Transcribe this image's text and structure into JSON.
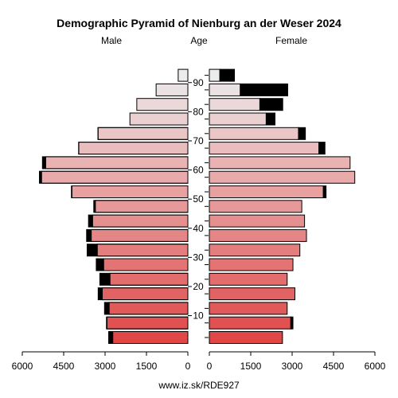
{
  "chart_data": {
    "type": "bar",
    "title": "Demographic Pyramid of Nienburg an der Weser 2024",
    "left_label": "Male",
    "center_label": "Age",
    "right_label": "Female",
    "footer": "www.iz.sk/RDE927",
    "age_ticks": [
      "10",
      "20",
      "30",
      "40",
      "50",
      "60",
      "70",
      "80",
      "90"
    ],
    "x_ticks_left": [
      "6000",
      "4500",
      "3000",
      "1500",
      "0"
    ],
    "x_ticks_right": [
      "0",
      "1500",
      "3000",
      "4500",
      "6000"
    ],
    "xlim": [
      0,
      6000
    ],
    "age_groups": [
      "0-4",
      "5-9",
      "10-14",
      "15-19",
      "20-24",
      "25-29",
      "30-34",
      "35-39",
      "40-44",
      "45-49",
      "50-54",
      "55-59",
      "60-64",
      "65-69",
      "70-74",
      "75-79",
      "80-84",
      "85-89",
      "90+"
    ],
    "series": [
      {
        "name": "Male",
        "values": [
          2720,
          2930,
          2850,
          3100,
          2820,
          3050,
          3280,
          3500,
          3450,
          3350,
          4200,
          5300,
          5150,
          3950,
          3250,
          2100,
          1850,
          1150,
          350
        ]
      },
      {
        "name": "Male excess",
        "values": [
          150,
          20,
          170,
          150,
          370,
          270,
          370,
          170,
          150,
          60,
          20,
          80,
          120,
          10,
          10,
          0,
          0,
          0,
          0
        ]
      },
      {
        "name": "Female",
        "values": [
          2650,
          2950,
          2820,
          3100,
          2820,
          3030,
          3280,
          3520,
          3450,
          3350,
          4130,
          5270,
          5100,
          3970,
          3230,
          2060,
          1830,
          1120,
          380
        ]
      },
      {
        "name": "Female excess",
        "values": [
          0,
          80,
          0,
          0,
          0,
          0,
          0,
          0,
          0,
          0,
          100,
          0,
          0,
          220,
          250,
          320,
          830,
          1720,
          530
        ]
      }
    ],
    "colors": {
      "young": "#e04848",
      "mid": "#e8a8a8",
      "old": "#ececec",
      "excess": "#000000"
    }
  }
}
